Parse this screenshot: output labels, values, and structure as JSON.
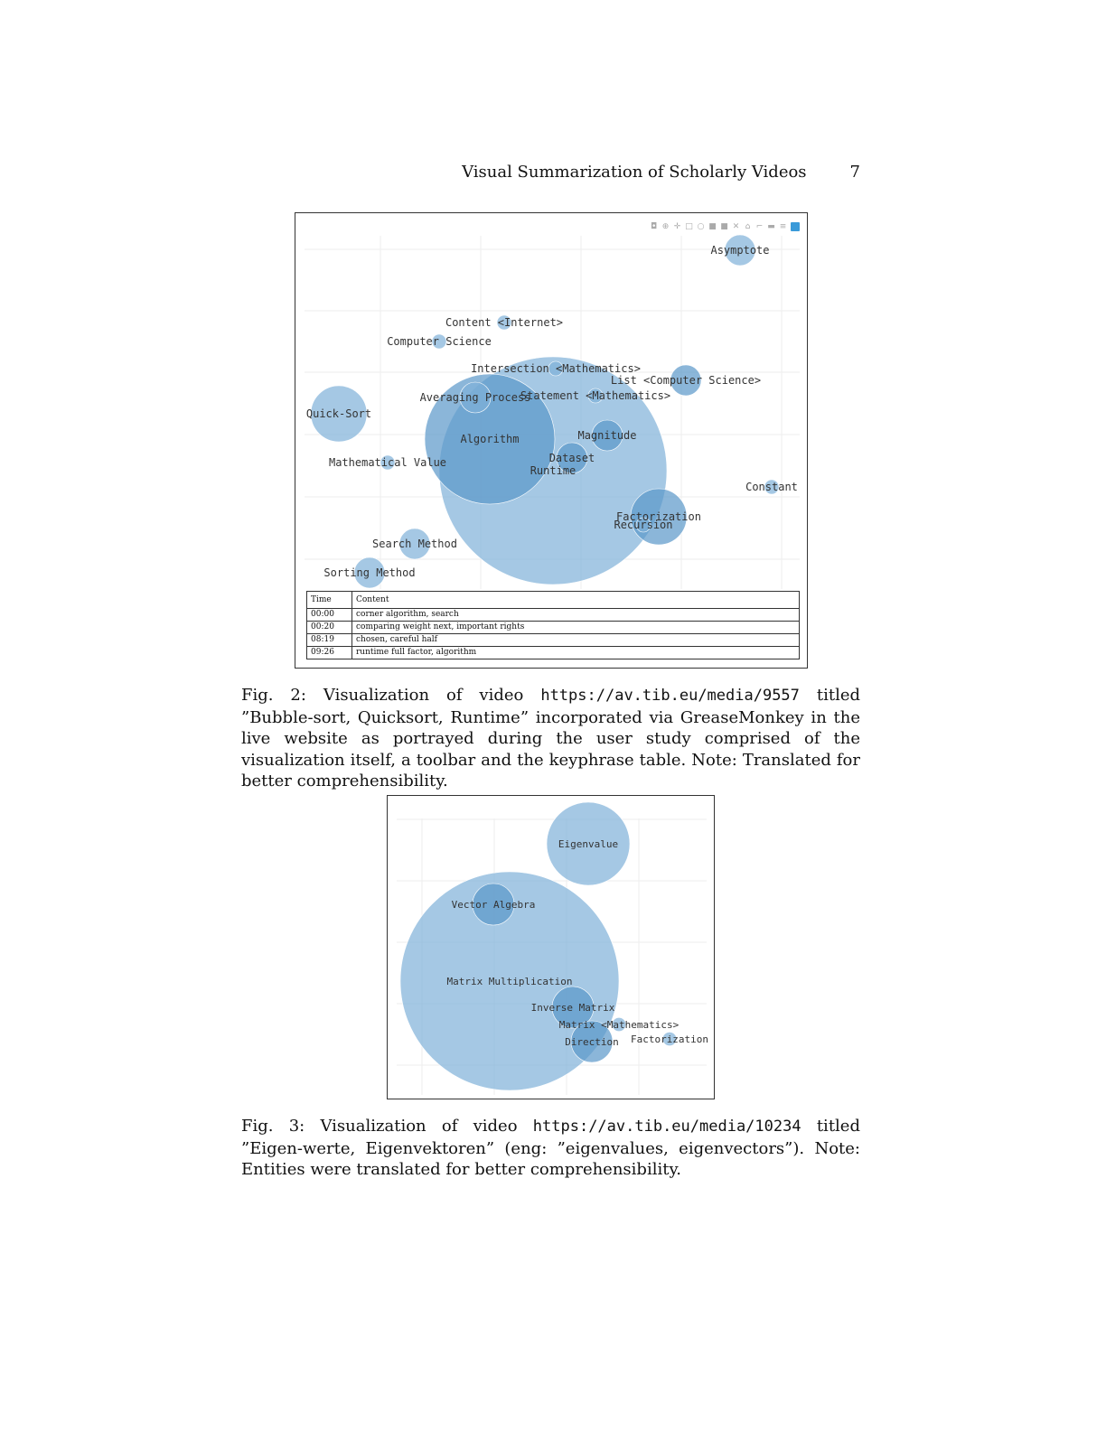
{
  "header": {
    "running_title": "Visual Summarization of Scholarly Videos",
    "page_number": "7"
  },
  "figure2": {
    "caption_label": "Fig. 2:",
    "caption_pre": "Visualization of video",
    "caption_url": "https://av.tib.eu/media/9557",
    "caption_post": "titled ”Bubble-sort, Quicksort, Runtime” incorporated via GreaseMonkey in the live website as portrayed during the user study comprised of the visualization itself, a toolbar and the keyphrase table. Note: Translated for better comprehensibility.",
    "toolbar_icons": [
      "camera-icon",
      "zoom-icon",
      "pan-icon",
      "box-select-icon",
      "lasso-icon",
      "zoom-in-icon",
      "zoom-out-icon",
      "autoscale-icon",
      "reset-axes-icon",
      "spike-lines-icon",
      "hover-closest-icon",
      "hover-compare-icon",
      "plotly-logo-icon"
    ],
    "table": {
      "headers": [
        "Time",
        "Content"
      ],
      "rows": [
        {
          "time": "00:00",
          "content": "corner algorithm, search"
        },
        {
          "time": "00:20",
          "content": "comparing weight next, important rights"
        },
        {
          "time": "08:19",
          "content": "chosen, careful half"
        },
        {
          "time": "09:26",
          "content": "runtime full factor, algorithm"
        }
      ]
    },
    "colors": {
      "bubble": "#7fb0d8",
      "bubble_dark": "#5a97c9"
    }
  },
  "figure3": {
    "caption_label": "Fig. 3:",
    "caption_pre": "Visualization of video",
    "caption_url": "https://av.tib.eu/media/10234",
    "caption_post": "titled ”Eigen-werte, Eigenvektoren” (eng: ”eigenvalues, eigenvectors”). Note: Entities were translated for better comprehensibility."
  },
  "chart_data": [
    {
      "type": "scatter",
      "title": "",
      "xlabel": "",
      "ylabel": "",
      "grid": true,
      "points": [
        {
          "label": "Asymptote",
          "size": "small"
        },
        {
          "label": "Content <Internet>",
          "size": "tiny"
        },
        {
          "label": "Computer Science",
          "size": "tiny"
        },
        {
          "label": "Intersection <Mathematics>",
          "size": "tiny"
        },
        {
          "label": "List <Computer Science>",
          "size": "small"
        },
        {
          "label": "Averaging Process",
          "size": "small"
        },
        {
          "label": "Statement <Mathematics>",
          "size": "tiny"
        },
        {
          "label": "Quick-Sort",
          "size": "medium"
        },
        {
          "label": "Algorithm",
          "size": "large"
        },
        {
          "label": "Magnitude",
          "size": "small"
        },
        {
          "label": "Mathematical Value",
          "size": "tiny"
        },
        {
          "label": "Dataset",
          "size": "small"
        },
        {
          "label": "Runtime",
          "size": "largest"
        },
        {
          "label": "Constant",
          "size": "tiny"
        },
        {
          "label": "Factorization",
          "size": "medium"
        },
        {
          "label": "Recursion",
          "size": "tiny"
        },
        {
          "label": "Search Method",
          "size": "small"
        },
        {
          "label": "Sorting Method",
          "size": "small"
        }
      ]
    },
    {
      "type": "scatter",
      "title": "",
      "xlabel": "",
      "ylabel": "",
      "grid": true,
      "points": [
        {
          "label": "Eigenvalue",
          "size": "large"
        },
        {
          "label": "Vector Algebra",
          "size": "small"
        },
        {
          "label": "Matrix Multiplication",
          "size": "largest"
        },
        {
          "label": "Inverse Matrix",
          "size": "small"
        },
        {
          "label": "Matrix <Mathematics>",
          "size": "tiny"
        },
        {
          "label": "Direction",
          "size": "small"
        },
        {
          "label": "Factorization",
          "size": "tiny"
        }
      ]
    }
  ]
}
